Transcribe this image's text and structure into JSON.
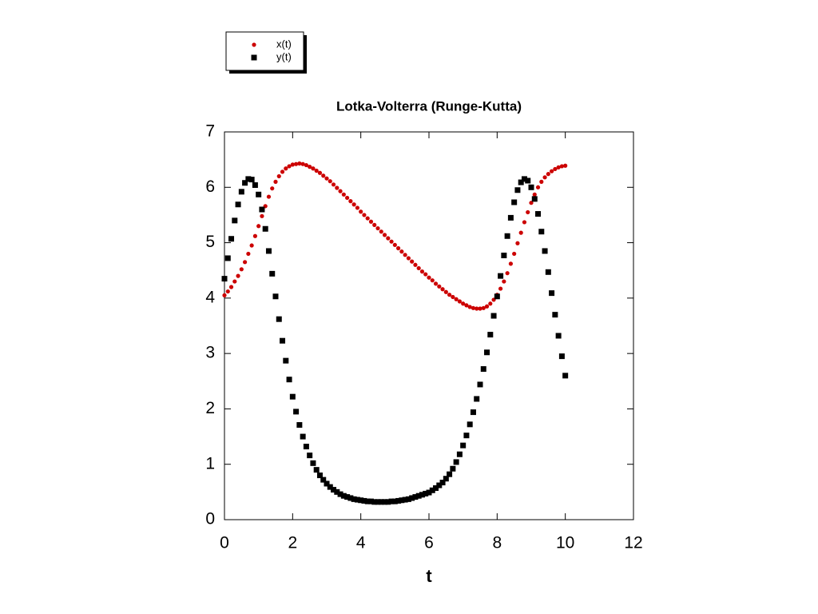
{
  "chart_data": {
    "type": "scatter",
    "title": "Lotka-Volterra (Runge-Kutta)",
    "x_label": "t",
    "x": [
      0,
      0.1,
      0.2,
      0.3,
      0.4,
      0.5,
      0.6,
      0.7,
      0.8,
      0.9,
      1,
      1.1,
      1.2,
      1.3,
      1.4,
      1.5,
      1.6,
      1.7,
      1.8,
      1.9,
      2,
      2.1,
      2.2,
      2.3,
      2.4,
      2.5,
      2.6,
      2.7,
      2.8,
      2.9,
      3,
      3.1,
      3.2,
      3.3,
      3.4,
      3.5,
      3.6,
      3.7,
      3.8,
      3.9,
      4,
      4.1,
      4.2,
      4.3,
      4.4,
      4.5,
      4.6,
      4.7,
      4.8,
      4.9,
      5,
      5.1,
      5.2,
      5.3,
      5.4,
      5.5,
      5.6,
      5.7,
      5.8,
      5.9,
      6,
      6.1,
      6.2,
      6.3,
      6.4,
      6.5,
      6.6,
      6.7,
      6.8,
      6.9,
      7,
      7.1,
      7.2,
      7.3,
      7.4,
      7.5,
      7.6,
      7.7,
      7.8,
      7.9,
      8,
      8.1,
      8.2,
      8.3,
      8.4,
      8.5,
      8.6,
      8.7,
      8.8,
      8.9,
      9,
      9.1,
      9.2,
      9.3,
      9.4,
      9.5,
      9.6,
      9.7,
      9.8,
      9.9,
      10
    ],
    "series": [
      {
        "name": "x(t)",
        "color": "#cc0000",
        "marker": "circle",
        "values": [
          4.05,
          4.12,
          4.2,
          4.3,
          4.4,
          4.52,
          4.65,
          4.8,
          4.95,
          5.12,
          5.3,
          5.48,
          5.66,
          5.83,
          5.98,
          6.1,
          6.2,
          6.28,
          6.34,
          6.38,
          6.41,
          6.42,
          6.43,
          6.42,
          6.4,
          6.37,
          6.34,
          6.3,
          6.26,
          6.21,
          6.16,
          6.11,
          6.05,
          5.99,
          5.93,
          5.87,
          5.81,
          5.75,
          5.69,
          5.63,
          5.56,
          5.5,
          5.44,
          5.38,
          5.32,
          5.26,
          5.2,
          5.14,
          5.08,
          5.02,
          4.96,
          4.9,
          4.84,
          4.78,
          4.72,
          4.66,
          4.6,
          4.54,
          4.48,
          4.43,
          4.37,
          4.32,
          4.26,
          4.21,
          4.16,
          4.11,
          4.06,
          4.02,
          3.98,
          3.94,
          3.9,
          3.87,
          3.84,
          3.82,
          3.81,
          3.81,
          3.82,
          3.85,
          3.9,
          3.97,
          4.06,
          4.17,
          4.3,
          4.45,
          4.62,
          4.8,
          4.99,
          5.18,
          5.37,
          5.55,
          5.72,
          5.87,
          6.0,
          6.1,
          6.18,
          6.24,
          6.29,
          6.33,
          6.36,
          6.38,
          6.39
        ]
      },
      {
        "name": "y(t)",
        "color": "#000000",
        "marker": "square",
        "values": [
          4.35,
          4.72,
          5.07,
          5.4,
          5.69,
          5.92,
          6.08,
          6.15,
          6.14,
          6.04,
          5.87,
          5.6,
          5.25,
          4.85,
          4.44,
          4.03,
          3.62,
          3.23,
          2.87,
          2.53,
          2.22,
          1.95,
          1.71,
          1.5,
          1.32,
          1.16,
          1.02,
          0.9,
          0.8,
          0.72,
          0.65,
          0.59,
          0.54,
          0.5,
          0.46,
          0.43,
          0.41,
          0.39,
          0.37,
          0.36,
          0.35,
          0.34,
          0.33,
          0.33,
          0.32,
          0.32,
          0.32,
          0.32,
          0.32,
          0.33,
          0.33,
          0.34,
          0.35,
          0.36,
          0.37,
          0.39,
          0.41,
          0.43,
          0.45,
          0.47,
          0.49,
          0.53,
          0.57,
          0.62,
          0.67,
          0.74,
          0.82,
          0.92,
          1.04,
          1.18,
          1.34,
          1.52,
          1.72,
          1.94,
          2.18,
          2.44,
          2.72,
          3.02,
          3.34,
          3.68,
          4.03,
          4.4,
          4.77,
          5.12,
          5.45,
          5.73,
          5.95,
          6.09,
          6.15,
          6.12,
          6.0,
          5.79,
          5.52,
          5.2,
          4.85,
          4.47,
          4.09,
          3.7,
          3.32,
          2.95,
          2.6
        ]
      }
    ],
    "xlim": [
      0,
      12
    ],
    "xticks": [
      0,
      2,
      4,
      6,
      8,
      10,
      12
    ],
    "ylim": [
      0,
      7
    ],
    "yticks": [
      0,
      1,
      2,
      3,
      4,
      5,
      6,
      7
    ]
  }
}
